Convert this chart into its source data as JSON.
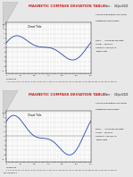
{
  "title": "MAGNETIC COMPASS DEVIATION TABLE",
  "chart_title": "Chart Title",
  "bg_color": "#e8e8e8",
  "page_color": "#ffffff",
  "chart_bg": "#ffffff",
  "grid_color": "#cccccc",
  "line_color": "#2244aa",
  "title_color": "#cc2222",
  "ylim": [
    -11,
    11
  ],
  "xlim": [
    0,
    360
  ],
  "date_text": "Date :     01/Jan/2020",
  "right_text1": "Compass deviation and other",
  "right_text2": "additional information",
  "race_text": "Race :    Compass Deviate",
  "vessel_text": "Vessel :  ABCDE N",
  "compass_text": "Compass: ABCD/EF W",
  "coeff_text": "Coefficients",
  "bottom_label": "N Heading",
  "page1_subtext": "",
  "page2_subtext": "No. COURSE 2",
  "curve1_phase": 15,
  "curve1_amp": 5.5,
  "curve2_phase": 35,
  "curve2_amp": 9.0
}
